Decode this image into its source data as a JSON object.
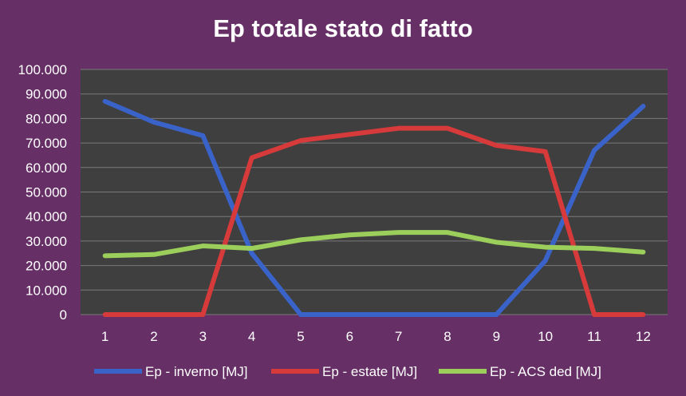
{
  "chart_data": {
    "type": "line",
    "title": "Ep totale stato di fatto",
    "xlabel": "",
    "ylabel": "",
    "categories": [
      "1",
      "2",
      "3",
      "4",
      "5",
      "6",
      "7",
      "8",
      "9",
      "10",
      "11",
      "12"
    ],
    "ylim": [
      0,
      100000
    ],
    "y_ticks": [
      0,
      10000,
      20000,
      30000,
      40000,
      50000,
      60000,
      70000,
      80000,
      90000,
      100000
    ],
    "y_tick_labels": [
      "0",
      "10.000",
      "20.000",
      "30.000",
      "40.000",
      "50.000",
      "60.000",
      "70.000",
      "80.000",
      "90.000",
      "100.000"
    ],
    "grid": true,
    "legend_position": "bottom",
    "series": [
      {
        "name": "Ep - inverno [MJ]",
        "color": "#3a63c9",
        "values": [
          87000,
          78500,
          73000,
          25000,
          0,
          0,
          0,
          0,
          0,
          22000,
          67000,
          85000
        ]
      },
      {
        "name": "Ep - estate [MJ]",
        "color": "#d63a3a",
        "values": [
          0,
          0,
          0,
          64000,
          71000,
          73500,
          76000,
          76000,
          69000,
          66500,
          0,
          0
        ]
      },
      {
        "name": "Ep - ACS ded [MJ]",
        "color": "#9bce5a",
        "values": [
          24000,
          24500,
          28000,
          27000,
          30500,
          32500,
          33500,
          33500,
          29500,
          27500,
          27000,
          25500
        ]
      }
    ],
    "plot_background": "#3f3f3f",
    "page_background": "#662f66"
  }
}
